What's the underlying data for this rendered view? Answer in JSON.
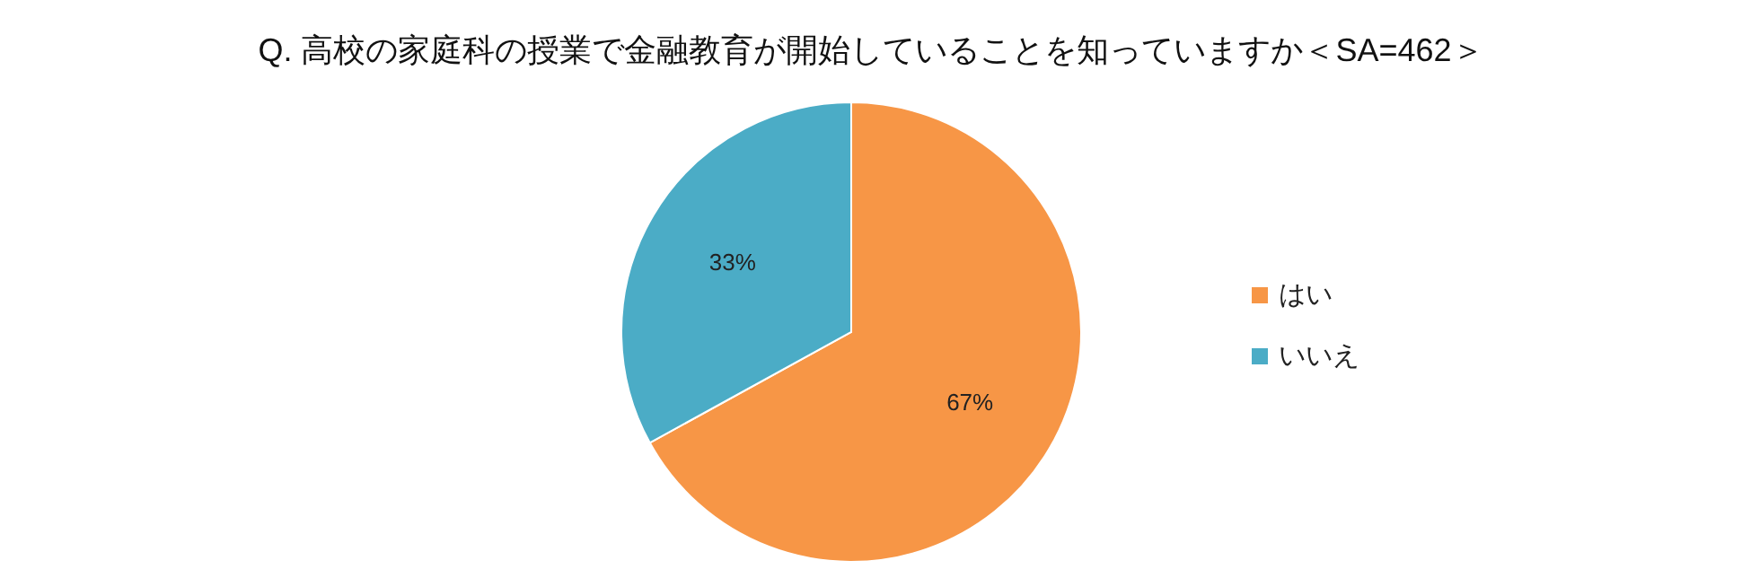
{
  "chart_data": {
    "type": "pie",
    "title": "Q. 高校の家庭科の授業で金融教育が開始していることを知っていますか＜SA=462＞",
    "categories": [
      "はい",
      "いいえ"
    ],
    "values": [
      67,
      33
    ],
    "colors": [
      "#f79646",
      "#4bacc6"
    ],
    "value_labels": [
      "67%",
      "33%"
    ],
    "legend": "right"
  }
}
